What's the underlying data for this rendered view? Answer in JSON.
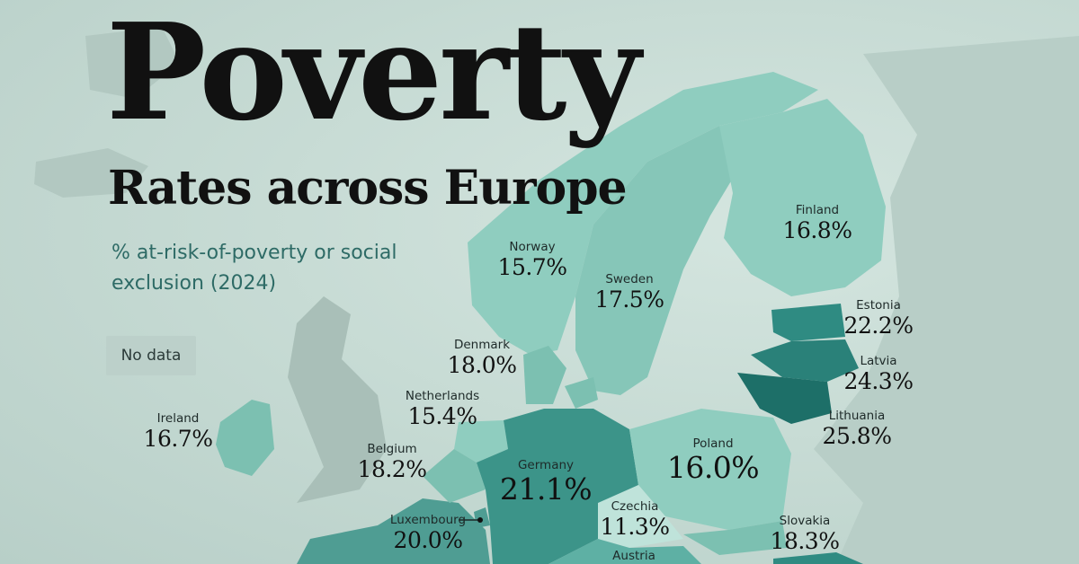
{
  "title": "Poverty",
  "subtitle": "Rates across Europe",
  "caption": "% at-risk-of-poverty or social exclusion (2024)",
  "no_data_label": "No data",
  "colors": {
    "background": "#c9dcd6",
    "no_data": "#a9bfb8",
    "low": "#8fcdbf",
    "mid": "#5eb0a4",
    "high": "#2f8b82",
    "highest": "#1d6f68"
  },
  "countries": [
    {
      "name": "Norway",
      "value": "15.7%"
    },
    {
      "name": "Sweden",
      "value": "17.5%"
    },
    {
      "name": "Finland",
      "value": "16.8%"
    },
    {
      "name": "Estonia",
      "value": "22.2%"
    },
    {
      "name": "Latvia",
      "value": "24.3%"
    },
    {
      "name": "Lithuania",
      "value": "25.8%"
    },
    {
      "name": "Denmark",
      "value": "18.0%"
    },
    {
      "name": "Netherlands",
      "value": "15.4%"
    },
    {
      "name": "Ireland",
      "value": "16.7%"
    },
    {
      "name": "Belgium",
      "value": "18.2%"
    },
    {
      "name": "Germany",
      "value": "21.1%"
    },
    {
      "name": "Poland",
      "value": "16.0%"
    },
    {
      "name": "Czechia",
      "value": "11.3%"
    },
    {
      "name": "Luxembourg",
      "value": "20.0%"
    },
    {
      "name": "Slovakia",
      "value": "18.3%"
    },
    {
      "name": "Austria",
      "value": ""
    }
  ]
}
